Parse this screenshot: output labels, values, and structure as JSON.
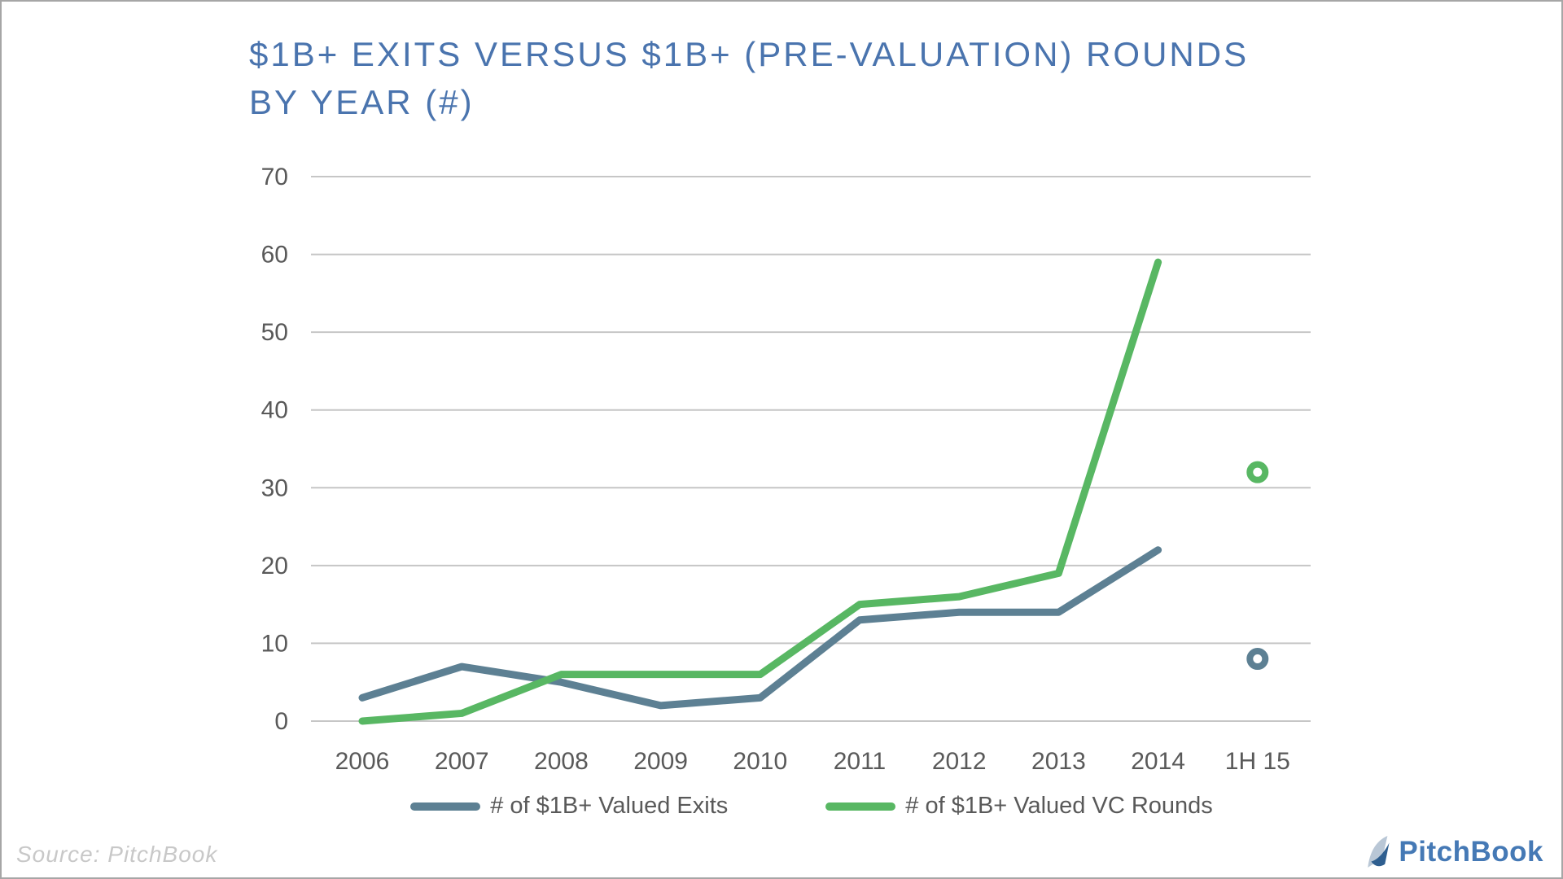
{
  "header": {
    "title": "$1B+ EXITS VERSUS $1B+ (PRE-VALUATION) ROUNDS BY YEAR (#)"
  },
  "chart_data": {
    "type": "line",
    "title": "$1B+ EXITS VERSUS $1B+ (PRE-VALUATION) ROUNDS BY YEAR (#)",
    "categories": [
      "2006",
      "2007",
      "2008",
      "2009",
      "2010",
      "2011",
      "2012",
      "2013",
      "2014",
      "1H 15"
    ],
    "series": [
      {
        "name": "# of $1B+ Valued Exits",
        "color": "#5d8093",
        "values": [
          3,
          7,
          5,
          2,
          3,
          13,
          14,
          14,
          22
        ],
        "isolated_point": {
          "category": "1H 15",
          "value": 8
        }
      },
      {
        "name": "# of $1B+ Valued VC Rounds",
        "color": "#58b763",
        "values": [
          0,
          1,
          6,
          6,
          6,
          15,
          16,
          19,
          59
        ],
        "isolated_point": {
          "category": "1H 15",
          "value": 32
        }
      }
    ],
    "xlabel": "",
    "ylabel": "",
    "ylim": [
      0,
      70
    ],
    "yticks": [
      0,
      10,
      20,
      30,
      40,
      50,
      60,
      70
    ],
    "grid": "horizontal",
    "legend_position": "bottom",
    "marker_style": "open-ring"
  },
  "footer": {
    "source": "Source: PitchBook",
    "logo_text": "PitchBook"
  },
  "colors": {
    "title_text": "#4a74ae",
    "axis_text": "#595959",
    "legend_text": "#595959",
    "gridline": "#c6c6c6",
    "exits_line": "#5d8093",
    "vc_rounds_line": "#58b763",
    "source_text": "#c8c8c8",
    "logo_text": "#4579b5",
    "logo_sail_light": "#b9c7d6",
    "logo_sail_dark": "#2e5e8f",
    "frame_border": "#a6a6a6"
  }
}
